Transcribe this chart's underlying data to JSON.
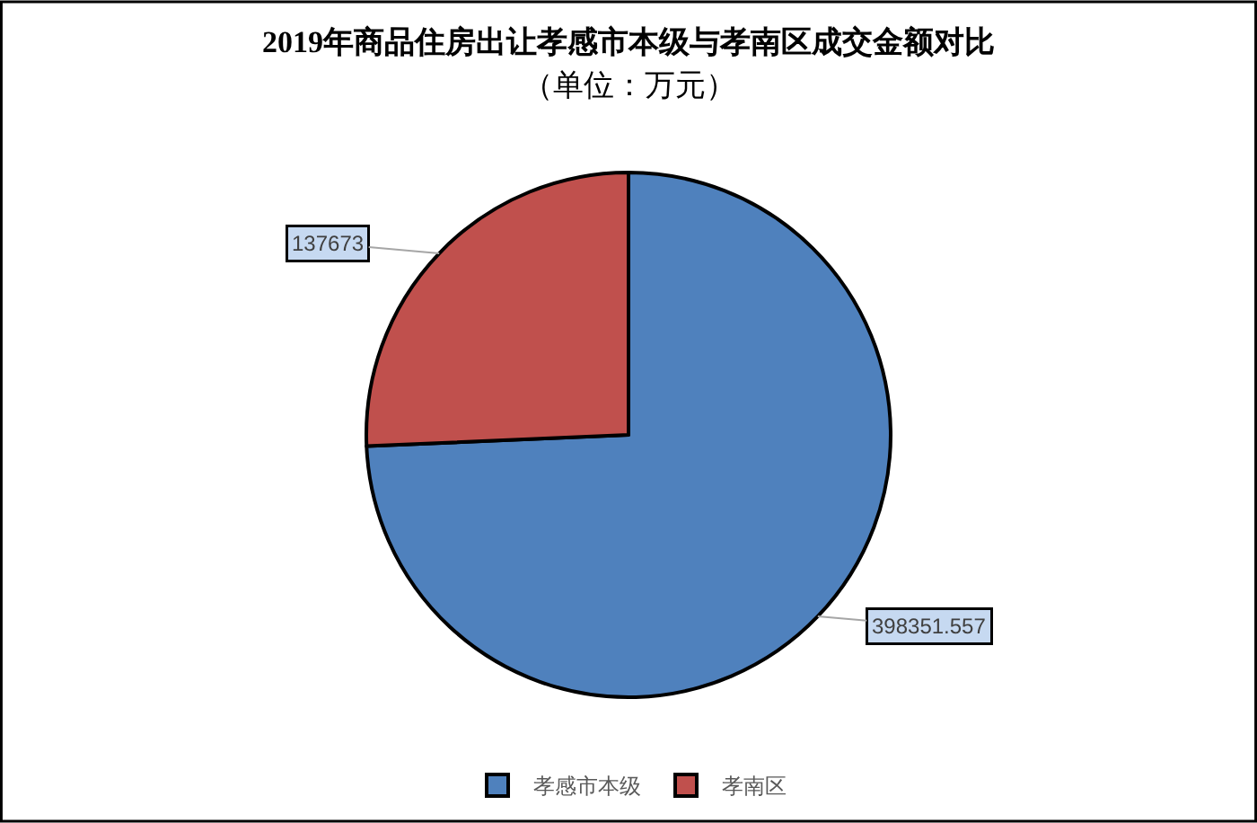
{
  "chart_data": {
    "type": "pie",
    "title": "2019年商品住房出让孝感市本级与孝南区成交金额对比",
    "subtitle": "（单位：万元）",
    "categories": [
      "孝感市本级",
      "孝南区"
    ],
    "values": [
      398351.557,
      137673
    ],
    "colors": [
      "#4f81bd",
      "#c0504d"
    ],
    "data_labels": true,
    "legend": "bottom"
  }
}
